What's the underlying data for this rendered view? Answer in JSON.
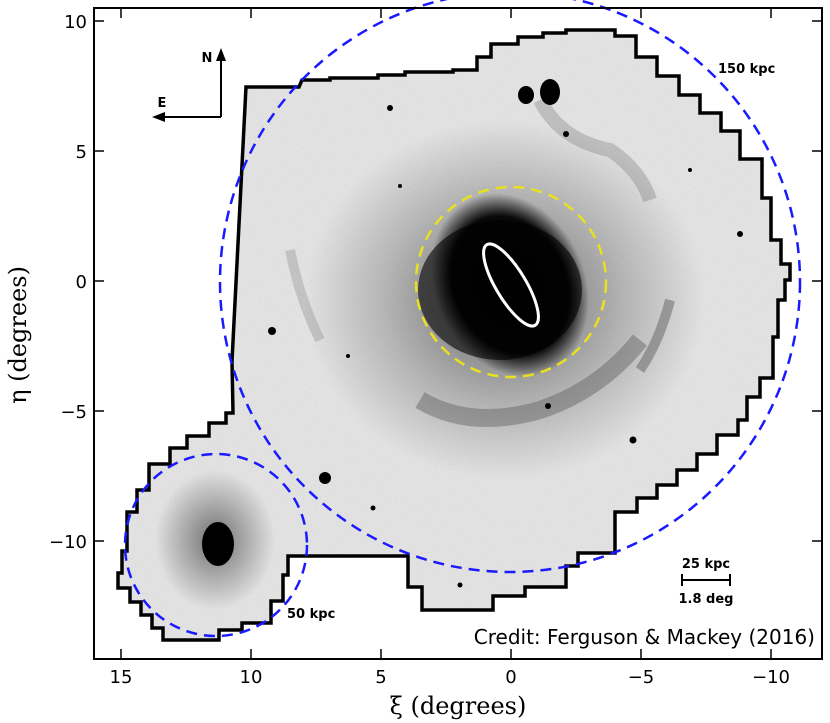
{
  "figure": {
    "x_axis_title": "ξ (degrees)",
    "y_axis_title": "η (degrees)",
    "x_ticks": [
      "15",
      "10",
      "5",
      "0",
      "−5",
      "−10"
    ],
    "y_ticks": [
      "10",
      "5",
      "0",
      "−5",
      "−10"
    ],
    "compass": {
      "north": "N",
      "east": "E"
    },
    "labels": {
      "outer_circle": "150 kpc",
      "inner_circle": "50 kpc",
      "scale_top": "25 kpc",
      "scale_bottom": "1.8 deg"
    },
    "credit": "Credit: Ferguson & Mackey (2016)",
    "colors": {
      "outer_circle": "#1a1aff",
      "inner_circle": "#1a1aff",
      "disk_ellipse_boundary": "#e8e020",
      "disk_ellipse": "#ffffff",
      "survey_boundary": "#000000",
      "background_sky": "#e6e6e6"
    }
  }
}
